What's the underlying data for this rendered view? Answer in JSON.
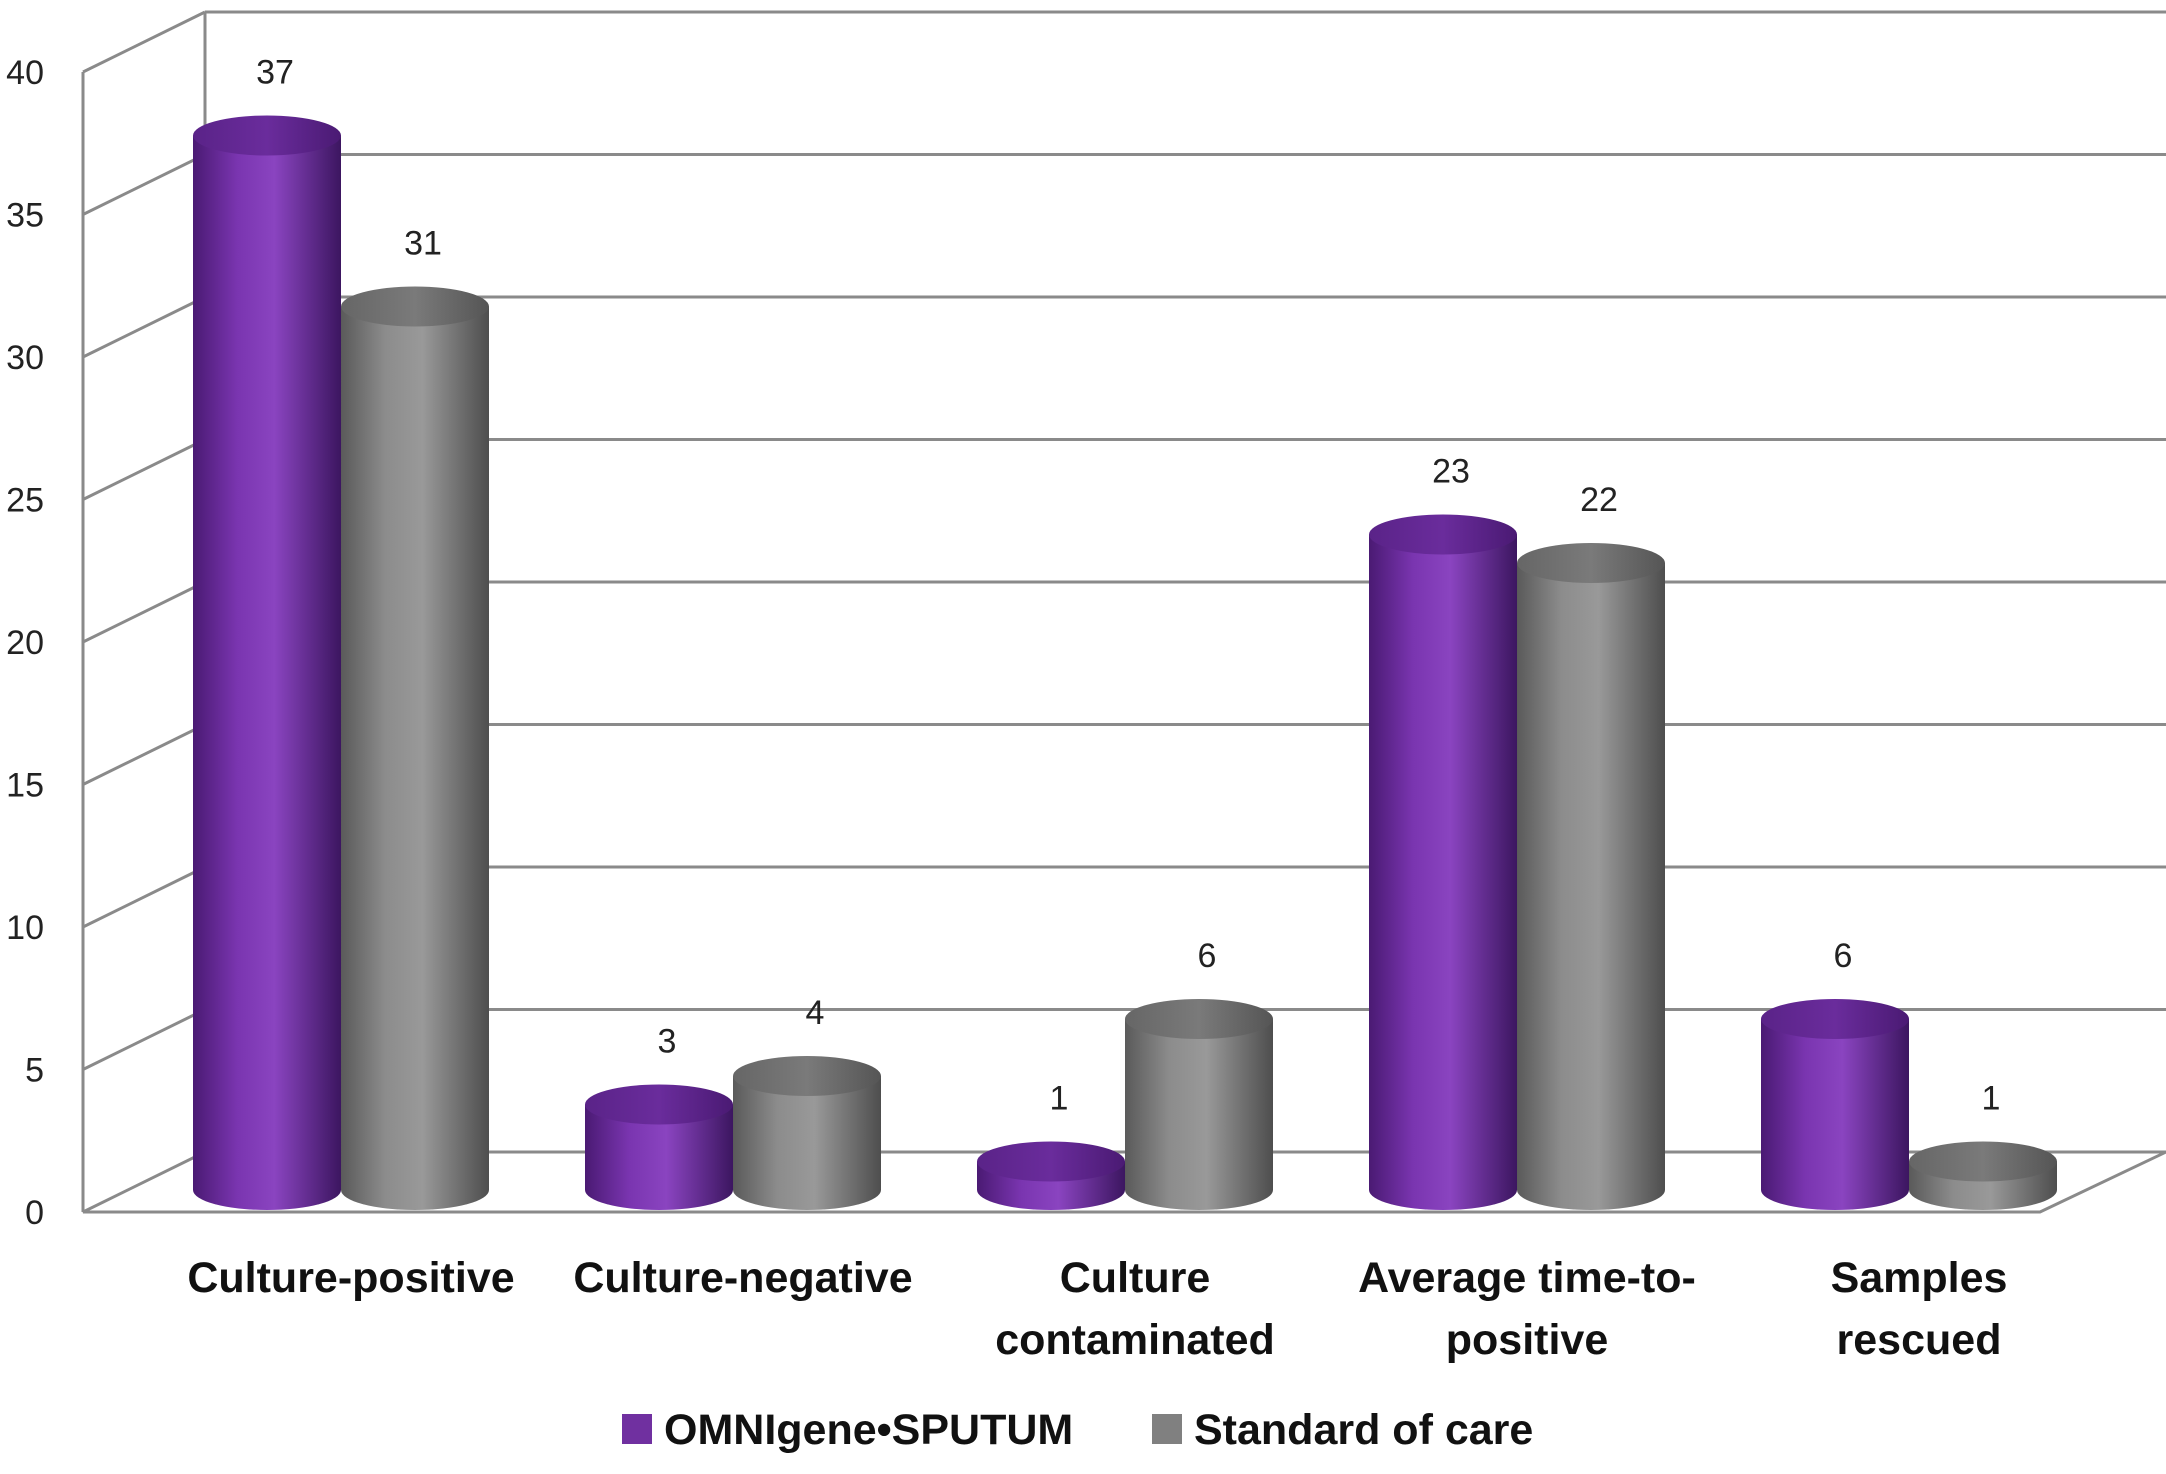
{
  "chart_data": {
    "type": "bar",
    "style": "3d-cylinder",
    "categories": [
      [
        "Culture-positive"
      ],
      [
        "Culture-negative"
      ],
      [
        "Culture",
        "contaminated"
      ],
      [
        "Average time-to-",
        "positive"
      ],
      [
        "Samples",
        "rescued"
      ]
    ],
    "series": [
      {
        "name": "OMNIgene•SPUTUM",
        "values": [
          37,
          3,
          1,
          23,
          6
        ],
        "color": "#7030a0"
      },
      {
        "name": "Standard of care",
        "values": [
          31,
          4,
          6,
          22,
          1
        ],
        "color": "#808080"
      }
    ],
    "ylim": [
      0,
      40
    ],
    "yticks": [
      0,
      5,
      10,
      15,
      20,
      25,
      30,
      35,
      40
    ],
    "grid": true,
    "data_labels": true,
    "legend_position": "bottom"
  }
}
